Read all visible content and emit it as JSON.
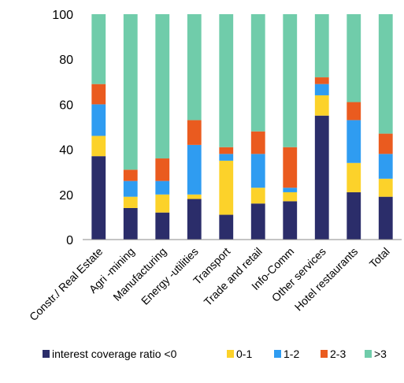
{
  "chart_data": {
    "type": "bar",
    "stacked": true,
    "categories": [
      "Constr./ Real Estate",
      "Agri -mining",
      "Manufacturing",
      "Energy -utilities",
      "Transport",
      "Trade and retail",
      "Info-Comm",
      "Other services",
      "Hotel restaurants",
      "Total"
    ],
    "series": [
      {
        "name": "interest coverage ratio <0",
        "color": "#2b2d6a",
        "values": [
          37,
          14,
          12,
          18,
          11,
          16,
          17,
          55,
          21,
          19
        ]
      },
      {
        "name": "0-1",
        "color": "#fcd22a",
        "values": [
          9,
          5,
          8,
          2,
          24,
          7,
          4,
          9,
          13,
          8
        ]
      },
      {
        "name": "1-2",
        "color": "#2f9cf1",
        "values": [
          14,
          7,
          6,
          22,
          3,
          15,
          2,
          5,
          19,
          11
        ]
      },
      {
        "name": "2-3",
        "color": "#ea5b1f",
        "values": [
          9,
          5,
          10,
          11,
          3,
          10,
          18,
          3,
          8,
          9
        ]
      },
      {
        "name": ">3",
        "color": "#70ccaa",
        "values": [
          31,
          69,
          64,
          47,
          59,
          52,
          59,
          28,
          39,
          53
        ]
      }
    ],
    "ylim": [
      0,
      100
    ],
    "yticks": [
      "0",
      "20",
      "40",
      "60",
      "80",
      "100"
    ],
    "title": "",
    "xlabel": "",
    "ylabel": "",
    "legend_position": "bottom",
    "grid": false
  }
}
